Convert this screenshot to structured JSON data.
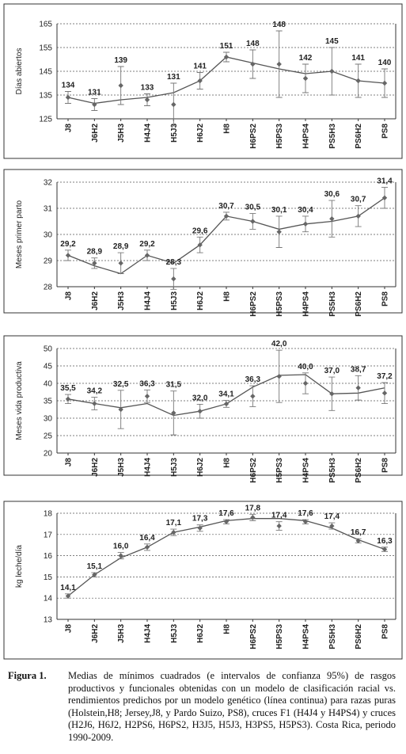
{
  "chart_data": [
    {
      "type": "line",
      "ylabel": "Días abiertos",
      "categories": [
        "J8",
        "J6H2",
        "J5H3",
        "H4J4",
        "H5J3",
        "H6J2",
        "H8",
        "H6PS2",
        "H5PS3",
        "H4PS4",
        "PS5H3",
        "PS6H2",
        "PS8"
      ],
      "values": [
        134,
        131,
        139,
        133,
        131,
        141,
        151,
        148,
        148,
        142,
        145,
        141,
        140
      ],
      "errors": [
        2.5,
        2.5,
        8,
        2.5,
        9,
        3.5,
        2,
        6,
        14,
        6,
        10,
        7,
        6
      ],
      "model_values": [
        134,
        131.5,
        133,
        134,
        136,
        141,
        151,
        148.5,
        146,
        144,
        145,
        141,
        140
      ],
      "ylim": [
        125,
        165
      ],
      "yticks": [
        125,
        135,
        145,
        155,
        165
      ],
      "grid": true,
      "color": "#666"
    },
    {
      "type": "line",
      "ylabel": "Meses primer parto",
      "categories": [
        "J8",
        "J6H2",
        "J5H3",
        "H4J4",
        "H5J3",
        "H6J2",
        "H8",
        "H6PS2",
        "H5PS3",
        "H4PS4",
        "PS5H3",
        "PS6H2",
        "PS8"
      ],
      "values": [
        29.2,
        28.9,
        28.9,
        29.2,
        28.3,
        29.6,
        30.7,
        30.5,
        30.1,
        30.4,
        30.6,
        30.7,
        31.4
      ],
      "value_labels": [
        "29,2",
        "28,9",
        "28,9",
        "29,2",
        "28,3",
        "29,6",
        "30,7",
        "30,5",
        "30,1",
        "30,4",
        "30,6",
        "30,7",
        "31,4"
      ],
      "errors": [
        0.2,
        0.2,
        0.4,
        0.2,
        0.4,
        0.3,
        0.15,
        0.3,
        0.6,
        0.3,
        0.7,
        0.4,
        0.4
      ],
      "model_values": [
        29.2,
        28.8,
        28.5,
        29.2,
        28.9,
        29.6,
        30.7,
        30.5,
        30.2,
        30.4,
        30.5,
        30.7,
        31.4
      ],
      "ylim": [
        28,
        32
      ],
      "yticks": [
        28,
        29,
        30,
        31,
        32
      ],
      "grid": true,
      "color": "#666"
    },
    {
      "type": "line",
      "ylabel": "Meses vida productiva",
      "categories": [
        "J8",
        "J6H2",
        "J5H3",
        "H4J4",
        "H5J3",
        "H6J2",
        "H8",
        "H6PS2",
        "H5PS3",
        "H4PS4",
        "PS5H3",
        "PS6H2",
        "PS8"
      ],
      "values": [
        35.5,
        34.2,
        32.5,
        36.3,
        31.5,
        32.0,
        34.1,
        36.3,
        42.0,
        40.0,
        37.0,
        38.7,
        37.2
      ],
      "value_labels": [
        "35,5",
        "34,2",
        "32,5",
        "36,3",
        "31,5",
        "32,0",
        "34,1",
        "36,3",
        "42,0",
        "40,0",
        "37,0",
        "38,7",
        "37,2"
      ],
      "errors": [
        1.3,
        1.8,
        5.5,
        1.8,
        6.3,
        2,
        1,
        3,
        7.5,
        3,
        4.8,
        3.5,
        3
      ],
      "model_values": [
        35.5,
        34.2,
        33.0,
        34.2,
        30.8,
        32.0,
        34.1,
        38.9,
        42.3,
        42.5,
        37.0,
        37.2,
        38.7
      ],
      "ylim": [
        20,
        50
      ],
      "yticks": [
        20,
        25,
        30,
        35,
        40,
        45,
        50
      ],
      "grid": true,
      "color": "#666"
    },
    {
      "type": "line",
      "ylabel": "kg leche/día",
      "categories": [
        "J8",
        "J6H2",
        "J5H3",
        "H4J4",
        "H5J3",
        "H6J2",
        "H8",
        "H6PS2",
        "H5PS3",
        "H4PS4",
        "PS5H3",
        "PS6H2",
        "PS8"
      ],
      "values": [
        14.1,
        15.1,
        16.0,
        16.4,
        17.1,
        17.3,
        17.6,
        17.8,
        17.4,
        17.6,
        17.4,
        16.7,
        16.3
      ],
      "value_labels": [
        "14,1",
        "15,1",
        "16,0",
        "16,4",
        "17,1",
        "17,3",
        "17,6",
        "17,8",
        "17,4",
        "17,6",
        "17,4",
        "16,7",
        "16,3"
      ],
      "errors": [
        0.1,
        0.1,
        0.15,
        0.15,
        0.15,
        0.15,
        0.1,
        0.15,
        0.2,
        0.1,
        0.15,
        0.1,
        0.1
      ],
      "model_values": [
        14.1,
        15.1,
        15.9,
        16.4,
        17.1,
        17.35,
        17.65,
        17.75,
        17.75,
        17.65,
        17.3,
        16.75,
        16.3
      ],
      "ylim": [
        13,
        18
      ],
      "yticks": [
        13,
        14,
        15,
        16,
        17,
        18
      ],
      "grid": true,
      "color": "#666"
    }
  ],
  "caption": {
    "label": "Figura 1.",
    "text": "Medias de mínimos cuadrados (e intervalos de confianza 95%) de rasgos productivos y funcionales obtenidas con un modelo de clasificación racial vs. rendimientos predichos por un modelo genético (línea continua) para razas puras (Holstein,H8; Jersey,J8, y Pardo Suizo, PS8), cruces F1 (H4J4 y H4PS4) y cruces (H2J6, H6J2, H2PS6, H6PS2, H3J5, H5J3, H3PS5, H5PS3). Costa Rica, periodo 1990-2009."
  }
}
